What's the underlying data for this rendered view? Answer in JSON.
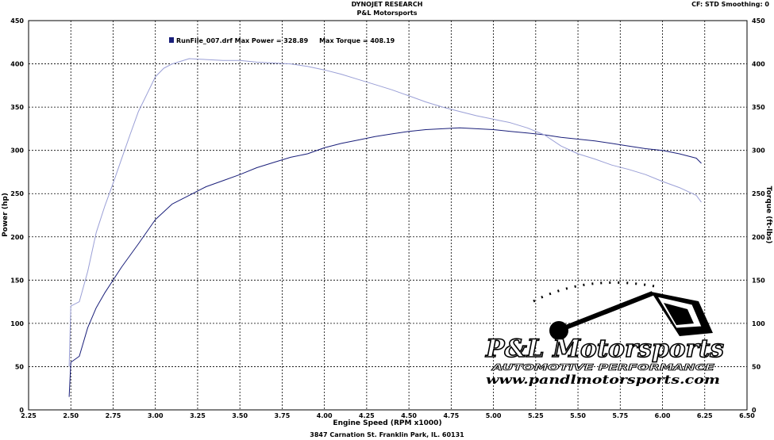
{
  "header": {
    "title": "DYNOJET RESEARCH",
    "subtitle": "P&L Motorsports",
    "settings": "CF: STD   Smoothing: 0"
  },
  "footer": "3847 Carnation St. Franklin Park, IL. 60131",
  "logo": {
    "name": "P&L Motorsports",
    "tagline": "AUTOMOTIVE PERFORMANCE",
    "url": "www.pandlmotorsports.com"
  },
  "chart_data": {
    "type": "line",
    "xlabel": "Engine Speed (RPM x1000)",
    "ylabel_left": "Power (hp)",
    "ylabel_right": "Torque (ft-lbs)",
    "xlim": [
      2.25,
      6.5
    ],
    "ylim": [
      0,
      450
    ],
    "xticks": [
      "2.25",
      "2.50",
      "2.75",
      "3.00",
      "3.25",
      "3.50",
      "3.75",
      "4.00",
      "4.25",
      "4.50",
      "4.75",
      "5.00",
      "5.25",
      "5.50",
      "5.75",
      "6.00",
      "6.25",
      "6.50"
    ],
    "yticks": [
      "0",
      "50",
      "100",
      "150",
      "200",
      "250",
      "300",
      "350",
      "400",
      "450"
    ],
    "grid": true,
    "legend": {
      "label": "RunFile_007.drf Max Power = 328.89     Max Torque = 408.19",
      "placement": "top-left"
    },
    "colors": {
      "power": "#1a1f7a",
      "torque": "#9a9fd6"
    },
    "series": [
      {
        "name": "Power",
        "x": [
          2.49,
          2.5,
          2.55,
          2.6,
          2.65,
          2.7,
          2.8,
          2.9,
          3.0,
          3.1,
          3.2,
          3.3,
          3.4,
          3.5,
          3.6,
          3.7,
          3.8,
          3.9,
          4.0,
          4.1,
          4.2,
          4.3,
          4.4,
          4.5,
          4.6,
          4.7,
          4.8,
          4.9,
          5.0,
          5.1,
          5.2,
          5.3,
          5.4,
          5.5,
          5.6,
          5.7,
          5.8,
          5.9,
          6.0,
          6.1,
          6.2,
          6.23
        ],
        "values": [
          15,
          55,
          62,
          95,
          118,
          135,
          165,
          192,
          220,
          238,
          248,
          258,
          265,
          272,
          280,
          286,
          292,
          296,
          303,
          308,
          312,
          316,
          319,
          322,
          324,
          325,
          326,
          325,
          324,
          322,
          320,
          318,
          315,
          313,
          311,
          308,
          305,
          302,
          300,
          296,
          291,
          285
        ]
      },
      {
        "name": "Torque",
        "x": [
          2.49,
          2.5,
          2.55,
          2.6,
          2.65,
          2.7,
          2.75,
          2.8,
          2.85,
          2.9,
          2.95,
          3.0,
          3.05,
          3.1,
          3.2,
          3.3,
          3.4,
          3.5,
          3.6,
          3.7,
          3.8,
          3.9,
          4.0,
          4.1,
          4.2,
          4.3,
          4.4,
          4.5,
          4.6,
          4.7,
          4.8,
          4.9,
          5.0,
          5.1,
          5.2,
          5.3,
          5.4,
          5.5,
          5.6,
          5.7,
          5.8,
          5.9,
          6.0,
          6.1,
          6.2,
          6.23
        ],
        "values": [
          50,
          120,
          125,
          160,
          205,
          235,
          262,
          290,
          318,
          345,
          365,
          385,
          395,
          400,
          406,
          405,
          404,
          404,
          402,
          401,
          400,
          397,
          393,
          388,
          382,
          376,
          370,
          363,
          356,
          350,
          345,
          340,
          336,
          332,
          326,
          318,
          305,
          296,
          290,
          283,
          278,
          272,
          264,
          257,
          248,
          240
        ]
      }
    ]
  }
}
